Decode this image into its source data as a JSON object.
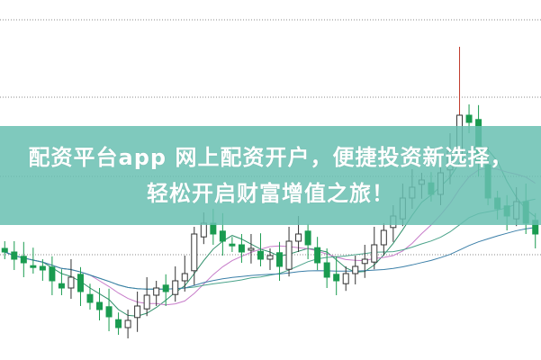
{
  "banner": {
    "line1": "配资平台app 网上配资开户，便捷投资新选择，",
    "line2": "轻松开启财富增值之旅！",
    "color": "#68c0b2"
  },
  "chart_data": {
    "type": "candlestick",
    "grid": "dotted horizontal",
    "ylim": [
      0,
      100
    ],
    "up_style": "hollow dark outline",
    "down_color": "#1a9b50",
    "ma_colors": [
      "#2f8f6a",
      "#c77cc9",
      "#4aa38a",
      "#3b7fa8"
    ],
    "ma_periods": [
      5,
      10,
      20,
      40
    ],
    "closes": [
      30,
      28,
      27,
      26,
      25,
      22,
      20,
      23,
      19,
      16,
      14,
      12,
      9,
      11,
      15,
      18,
      20,
      19,
      22,
      24,
      35,
      38,
      35,
      33,
      32,
      30,
      31,
      28,
      29,
      26,
      33,
      35,
      32,
      27,
      23,
      22,
      24,
      26,
      28,
      32,
      36,
      40,
      45,
      48,
      50,
      46,
      52,
      58,
      68,
      66,
      55,
      45,
      42,
      40,
      44,
      38,
      35
    ],
    "spike": {
      "index": 48,
      "high": 87
    }
  }
}
